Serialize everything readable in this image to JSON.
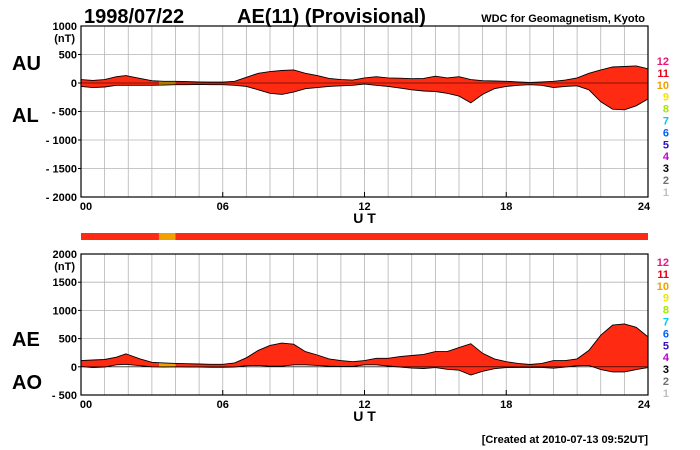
{
  "header": {
    "date": "1998/07/22",
    "title": "AE(11) (Provisional)",
    "source": "WDC for Geomagnetism, Kyoto"
  },
  "footer": {
    "created": "[Created at 2010-07-13 09:52UT]"
  },
  "legend": {
    "entries": [
      {
        "label": "12",
        "color": "#e8177d"
      },
      {
        "label": "11",
        "color": "#e8001c"
      },
      {
        "label": "10",
        "color": "#f0a000"
      },
      {
        "label": "9",
        "color": "#f2e600"
      },
      {
        "label": "8",
        "color": "#a6e600"
      },
      {
        "label": "7",
        "color": "#00c8f0"
      },
      {
        "label": "6",
        "color": "#0060ff"
      },
      {
        "label": "5",
        "color": "#3010c0"
      },
      {
        "label": "4",
        "color": "#c000d0"
      },
      {
        "label": "3",
        "color": "#000000"
      },
      {
        "label": "2",
        "color": "#707070"
      },
      {
        "label": "1",
        "color": "#c0c0c0"
      }
    ]
  },
  "station_bar": {
    "colors": {
      "main": "#ff2a12",
      "alt": "#f0a000"
    },
    "segments": [
      {
        "from": 0,
        "to": 3.3,
        "stations": 11
      },
      {
        "from": 3.3,
        "to": 4.0,
        "stations": 10
      },
      {
        "from": 4.0,
        "to": 24,
        "stations": 11
      }
    ]
  },
  "chart_data": [
    {
      "type": "area",
      "ylabel_upper": "AU",
      "ylabel_lower": "AL",
      "unit": "(nT)",
      "ylim": [
        -2000,
        1000
      ],
      "xlim": [
        0,
        24
      ],
      "xlabel": "U T",
      "x_ticks": [
        "00",
        "06",
        "12",
        "18",
        "24"
      ],
      "y_ticks": [
        "1000",
        "500",
        "0",
        "- 500",
        "- 1000",
        "- 1500",
        "- 2000"
      ],
      "grid": true,
      "fill_color": "#ff2a12",
      "highlight": {
        "from": 3.3,
        "to": 4.0,
        "color": "#f0a000"
      },
      "x": [
        0,
        0.5,
        1,
        1.5,
        1.9,
        2.5,
        3,
        3.5,
        4,
        4.5,
        5,
        5.5,
        6,
        6.5,
        7,
        7.5,
        8,
        8.5,
        9,
        9.5,
        10,
        10.5,
        11,
        11.5,
        12,
        12.5,
        13,
        13.5,
        14,
        14.5,
        15,
        15.5,
        16,
        16.5,
        17,
        17.5,
        18,
        18.5,
        19,
        19.5,
        20,
        20.5,
        21,
        21.5,
        22,
        22.5,
        23,
        23.5,
        24
      ],
      "upper": [
        60,
        45,
        60,
        110,
        130,
        80,
        40,
        30,
        30,
        25,
        20,
        15,
        15,
        30,
        100,
        170,
        200,
        220,
        230,
        170,
        130,
        80,
        60,
        50,
        90,
        110,
        90,
        85,
        75,
        80,
        120,
        90,
        110,
        60,
        40,
        35,
        30,
        20,
        10,
        20,
        30,
        50,
        90,
        170,
        230,
        280,
        290,
        300,
        250
      ],
      "lower": [
        -60,
        -80,
        -70,
        -40,
        -40,
        -40,
        -40,
        -35,
        -30,
        -30,
        -25,
        -30,
        -30,
        -40,
        -60,
        -120,
        -180,
        -200,
        -160,
        -100,
        -80,
        -60,
        -50,
        -40,
        -20,
        -40,
        -60,
        -90,
        -120,
        -140,
        -150,
        -180,
        -230,
        -350,
        -200,
        -100,
        -60,
        -40,
        -30,
        -40,
        -80,
        -60,
        -50,
        -120,
        -330,
        -460,
        -470,
        -400,
        -280
      ]
    },
    {
      "type": "area",
      "ylabel_upper": "AE",
      "ylabel_lower": "AO",
      "unit": "(nT)",
      "ylim": [
        -500,
        2000
      ],
      "xlim": [
        0,
        24
      ],
      "xlabel": "U T",
      "x_ticks": [
        "00",
        "06",
        "12",
        "18",
        "24"
      ],
      "y_ticks": [
        "2000",
        "1500",
        "1000",
        "500",
        "0",
        "- 500"
      ],
      "grid": true,
      "fill_color": "#ff2a12",
      "highlight": {
        "from": 3.3,
        "to": 4.0,
        "color": "#f0a000"
      },
      "x": [
        0,
        0.5,
        1,
        1.5,
        1.9,
        2.5,
        3,
        3.5,
        4,
        4.5,
        5,
        5.5,
        6,
        6.5,
        7,
        7.5,
        8,
        8.5,
        9,
        9.5,
        10,
        10.5,
        11,
        11.5,
        12,
        12.5,
        13,
        13.5,
        14,
        14.5,
        15,
        15.5,
        16,
        16.5,
        17,
        17.5,
        18,
        18.5,
        19,
        19.5,
        20,
        20.5,
        21,
        21.5,
        22,
        22.5,
        23,
        23.5,
        24
      ],
      "upper": [
        110,
        120,
        130,
        170,
        230,
        140,
        80,
        70,
        60,
        55,
        50,
        45,
        45,
        70,
        160,
        290,
        380,
        420,
        400,
        270,
        210,
        140,
        110,
        90,
        110,
        150,
        150,
        180,
        200,
        220,
        270,
        270,
        340,
        410,
        240,
        140,
        90,
        60,
        40,
        60,
        110,
        110,
        140,
        290,
        560,
        740,
        760,
        700,
        530
      ],
      "lower": [
        5,
        -15,
        -5,
        35,
        45,
        20,
        0,
        -3,
        0,
        -3,
        -3,
        -8,
        -8,
        -5,
        20,
        25,
        10,
        10,
        35,
        35,
        25,
        10,
        5,
        5,
        35,
        35,
        15,
        -3,
        -23,
        -30,
        -15,
        -45,
        -60,
        -145,
        -80,
        -33,
        -15,
        -10,
        -10,
        -10,
        -25,
        -5,
        20,
        25,
        -50,
        -90,
        -90,
        -50,
        -15
      ]
    }
  ]
}
